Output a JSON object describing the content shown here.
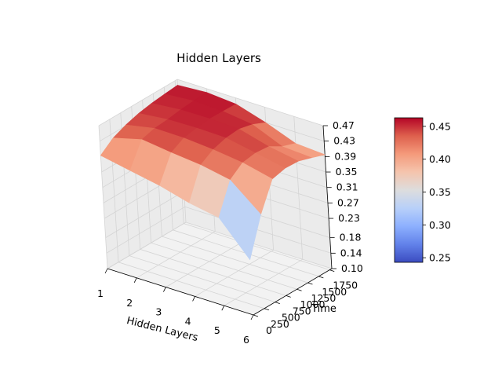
{
  "chart_data": {
    "type": "surface",
    "title": "Hidden Layers",
    "xlabel": "Hidden Layers",
    "ylabel": "Time",
    "zlabel": "",
    "x_ticks": [
      "1",
      "2",
      "3",
      "4",
      "5",
      "6"
    ],
    "y_ticks": [
      "0",
      "250",
      "500",
      "750",
      "1000",
      "1250",
      "1500",
      "1750"
    ],
    "z_ticks": [
      "0.10",
      "0.14",
      "0.18",
      "0.23",
      "0.27",
      "0.31",
      "0.35",
      "0.39",
      "0.43",
      "0.47"
    ],
    "colorbar_ticks": [
      "0.25",
      "0.30",
      "0.35",
      "0.40",
      "0.45"
    ],
    "colormap": "coolwarm",
    "colorbar_range": [
      0.243,
      0.463
    ],
    "xlim": [
      1,
      6
    ],
    "ylim": [
      0,
      1800
    ],
    "zlim": [
      0.1,
      0.47
    ],
    "hidden_layers": [
      1,
      2,
      3,
      4,
      5,
      6
    ],
    "time": [
      0,
      300,
      600,
      900,
      1200,
      1500,
      1800
    ],
    "values": [
      [
        0.393,
        0.418,
        0.432,
        0.442,
        0.448,
        0.452,
        0.455
      ],
      [
        0.378,
        0.438,
        0.447,
        0.45,
        0.455,
        0.458,
        0.46
      ],
      [
        0.363,
        0.428,
        0.446,
        0.452,
        0.456,
        0.455,
        0.454
      ],
      [
        0.342,
        0.42,
        0.44,
        0.45,
        0.453,
        0.445,
        0.43
      ],
      [
        0.328,
        0.405,
        0.43,
        0.435,
        0.432,
        0.412,
        0.4
      ],
      [
        0.243,
        0.34,
        0.412,
        0.42,
        0.418,
        0.407,
        0.395
      ]
    ]
  }
}
